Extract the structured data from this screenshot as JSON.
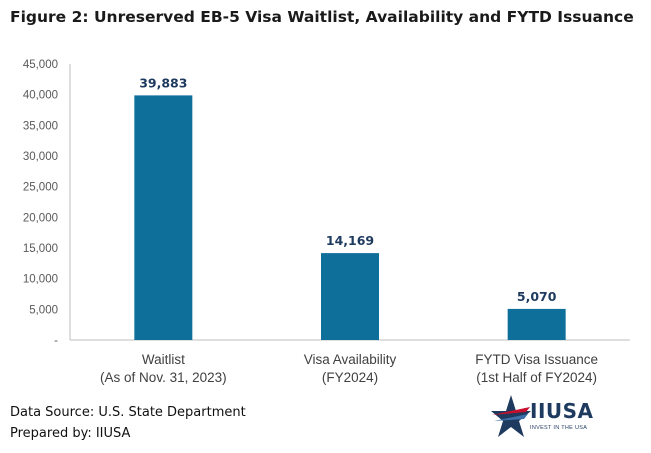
{
  "title": "Figure 2: Unreserved EB-5 Visa Waitlist, Availability and FYTD Issuance",
  "chart_data": {
    "type": "bar",
    "categories": [
      [
        "Waitlist",
        "(As of Nov. 31, 2023)"
      ],
      [
        "Visa Availability",
        "(FY2024)"
      ],
      [
        "FYTD Visa Issuance",
        "(1st Half of FY2024)"
      ]
    ],
    "values": [
      39883,
      14169,
      5070
    ],
    "value_labels": [
      "39,883",
      "14,169",
      "5,070"
    ],
    "ylim": [
      0,
      45000
    ],
    "yticks": [
      0,
      5000,
      10000,
      15000,
      20000,
      25000,
      30000,
      35000,
      40000,
      45000
    ],
    "ytick_labels": [
      "-",
      "5,000",
      "10,000",
      "15,000",
      "20,000",
      "25,000",
      "30,000",
      "35,000",
      "40,000",
      "45,000"
    ],
    "xlabel": "",
    "ylabel": "",
    "grid": false,
    "bar_color": "#0e6f9b",
    "value_label_color": "#1f3a5f"
  },
  "footer": {
    "source": "Data Source: U.S. State Department",
    "prepared": "Prepared by: IIUSA"
  },
  "logo": {
    "name": "IIUSA",
    "tagline": "INVEST IN THE USA",
    "colors": {
      "red": "#c8102e",
      "navy": "#1f3a5f",
      "blue": "#3d6fa8"
    }
  }
}
